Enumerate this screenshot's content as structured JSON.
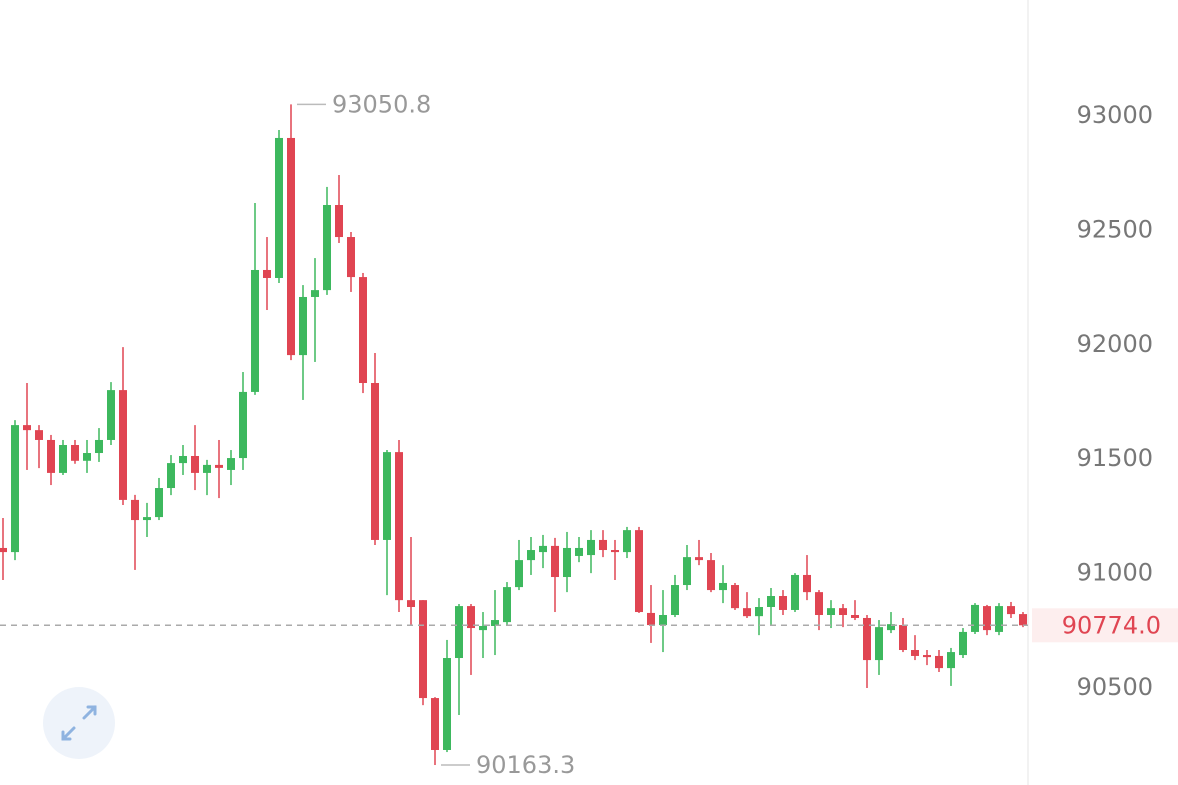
{
  "chart_data": {
    "type": "candlestick",
    "open": [
      91112,
      91094,
      91649,
      91627,
      91584,
      91440,
      91562,
      91493,
      91527,
      91584,
      91802,
      91322,
      91234,
      91247,
      91374,
      91483,
      91514,
      91440,
      91475,
      91453,
      91505,
      91794,
      92327,
      92292,
      92904,
      91955,
      92209,
      92239,
      92611,
      92471,
      92296,
      91833,
      91147,
      91531,
      90884,
      90884,
      90456,
      90229,
      90631,
      90858,
      90753,
      90771,
      90788,
      90941,
      91059,
      91094,
      91121,
      90985,
      91077,
      91081,
      91147,
      91103,
      91094,
      91190,
      90828,
      90775,
      90819,
      90950,
      91072,
      91059,
      90928,
      90950,
      90849,
      90814,
      90854,
      90902,
      90841,
      90994,
      90919,
      90819,
      90849,
      90819,
      90806,
      90622,
      90753,
      90775,
      90666,
      90644,
      90640,
      90587,
      90644,
      90745,
      90858,
      90745,
      90858,
      90823
    ],
    "high": [
      91243,
      91671,
      91833,
      91649,
      91606,
      91584,
      91584,
      91584,
      91636,
      91837,
      91990,
      91344,
      91309,
      91418,
      91518,
      91562,
      91649,
      91497,
      91584,
      91540,
      91881,
      92620,
      92471,
      92939,
      93050.8,
      92261,
      92379,
      92690,
      92742,
      92493,
      92314,
      91964,
      91540,
      91584,
      91160,
      90884,
      90460,
      90710,
      90867,
      90867,
      90832,
      90928,
      90963,
      91147,
      91160,
      91169,
      91156,
      91182,
      91160,
      91190,
      91190,
      91147,
      91204,
      91204,
      90950,
      90928,
      90994,
      91125,
      91147,
      91090,
      91037,
      90959,
      90919,
      90893,
      90937,
      90928,
      91002,
      91081,
      90928,
      90884,
      90867,
      90884,
      90819,
      90797,
      90832,
      90806,
      90731,
      90666,
      90666,
      90675,
      90762,
      90871,
      90863,
      90871,
      90876,
      90832
    ],
    "low": [
      90972,
      91059,
      91453,
      91461,
      91387,
      91431,
      91480,
      91440,
      91488,
      91562,
      91300,
      91016,
      91160,
      91234,
      91343,
      91431,
      91365,
      91343,
      91330,
      91387,
      91453,
      91781,
      92152,
      92270,
      91933,
      91759,
      91925,
      92218,
      92445,
      92231,
      91789,
      91125,
      90906,
      90832,
      90775,
      90425,
      90163.3,
      90220,
      90382,
      90557,
      90631,
      90644,
      90775,
      90928,
      90994,
      91024,
      90832,
      90919,
      91050,
      91002,
      91072,
      90972,
      91068,
      90828,
      90697,
      90657,
      90810,
      90928,
      91037,
      90919,
      90871,
      90841,
      90806,
      90731,
      90775,
      90819,
      90832,
      90884,
      90753,
      90762,
      90766,
      90797,
      90500,
      90557,
      90740,
      90657,
      90622,
      90600,
      90570,
      90509,
      90631,
      90736,
      90731,
      90731,
      90806,
      90766
    ],
    "close": [
      91094,
      91649,
      91627,
      91584,
      91440,
      91562,
      91493,
      91527,
      91584,
      91802,
      91322,
      91234,
      91247,
      91374,
      91483,
      91514,
      91440,
      91475,
      91462,
      91505,
      91794,
      92327,
      92292,
      92904,
      91955,
      92209,
      92239,
      92611,
      92471,
      92296,
      91833,
      91147,
      91531,
      90884,
      90854,
      90456,
      90229,
      90631,
      90858,
      90762,
      90771,
      90797,
      90941,
      91059,
      91103,
      91121,
      90985,
      91112,
      91112,
      91147,
      91103,
      91094,
      91190,
      90832,
      90775,
      90819,
      90950,
      91072,
      91059,
      90928,
      90959,
      90849,
      90814,
      90854,
      90902,
      90841,
      90994,
      90919,
      90819,
      90849,
      90819,
      90806,
      90622,
      90766,
      90779,
      90666,
      90640,
      90635,
      90587,
      90657,
      90745,
      90863,
      90753,
      90858,
      90823,
      90774
    ],
    "up_color": "#3db85e",
    "down_color": "#e04552",
    "ylim": [
      90076,
      93507
    ],
    "yticks": [
      90500,
      91000,
      91500,
      92000,
      92500,
      93000
    ],
    "last_price": {
      "value": 90774,
      "label": "90774.0"
    },
    "grid": false
  }
}
